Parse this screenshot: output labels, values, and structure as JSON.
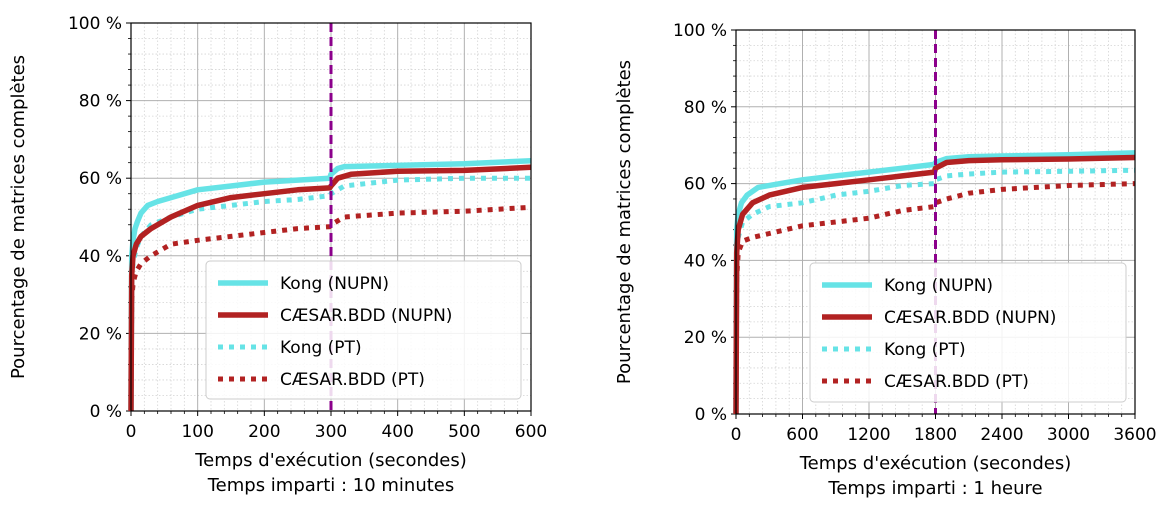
{
  "chart_data": [
    {
      "type": "line",
      "xlabel": "Temps d'exécution (secondes)",
      "subtitle": "Temps imparti : 10 minutes",
      "ylabel": "Pourcentage de matrices complètes",
      "xlim": [
        0,
        600
      ],
      "ylim": [
        0,
        100
      ],
      "x_ticks": [
        "0",
        "100",
        "200",
        "300",
        "400",
        "500",
        "600"
      ],
      "y_ticks": [
        "0 %",
        "20 %",
        "40 %",
        "60 %",
        "80 %",
        "100 %"
      ],
      "grid": true,
      "vline": {
        "x": 300,
        "color": "#8b008b",
        "style": "dashed"
      },
      "legend_position": "lower-right",
      "series": [
        {
          "name": "Kong (NUPN)",
          "color": "#66e3e6",
          "style": "solid",
          "points": [
            [
              0,
              0
            ],
            [
              1,
              40
            ],
            [
              3,
              44
            ],
            [
              6,
              47
            ],
            [
              10,
              49
            ],
            [
              15,
              51
            ],
            [
              25,
              53
            ],
            [
              40,
              54
            ],
            [
              60,
              55
            ],
            [
              100,
              57
            ],
            [
              150,
              58
            ],
            [
              200,
              59
            ],
            [
              250,
              59.5
            ],
            [
              298,
              60
            ],
            [
              300,
              61
            ],
            [
              310,
              62.5
            ],
            [
              320,
              63
            ],
            [
              400,
              63.3
            ],
            [
              500,
              63.7
            ],
            [
              600,
              64.5
            ]
          ]
        },
        {
          "name": "CÆSAR.BDD (NUPN)",
          "color": "#b22222",
          "style": "solid",
          "points": [
            [
              0,
              0
            ],
            [
              1,
              35
            ],
            [
              3,
              40
            ],
            [
              8,
              43
            ],
            [
              15,
              45
            ],
            [
              30,
              47
            ],
            [
              60,
              50
            ],
            [
              100,
              53
            ],
            [
              150,
              55
            ],
            [
              200,
              56
            ],
            [
              250,
              57
            ],
            [
              298,
              57.5
            ],
            [
              300,
              58
            ],
            [
              310,
              60
            ],
            [
              330,
              61
            ],
            [
              400,
              61.8
            ],
            [
              500,
              62
            ],
            [
              600,
              62.8
            ]
          ]
        },
        {
          "name": "Kong (PT)",
          "color": "#66e3e6",
          "style": "dotted",
          "points": [
            [
              0,
              0
            ],
            [
              1,
              33
            ],
            [
              3,
              38
            ],
            [
              8,
              42
            ],
            [
              15,
              45
            ],
            [
              30,
              48
            ],
            [
              60,
              50
            ],
            [
              100,
              52
            ],
            [
              150,
              53
            ],
            [
              200,
              54
            ],
            [
              250,
              54.5
            ],
            [
              298,
              55.5
            ],
            [
              300,
              56
            ],
            [
              320,
              58
            ],
            [
              400,
              59.5
            ],
            [
              500,
              60
            ],
            [
              600,
              60
            ]
          ]
        },
        {
          "name": "CÆSAR.BDD (PT)",
          "color": "#b22222",
          "style": "dotted",
          "points": [
            [
              0,
              0
            ],
            [
              1,
              28
            ],
            [
              3,
              33
            ],
            [
              8,
              36
            ],
            [
              15,
              38
            ],
            [
              30,
              40
            ],
            [
              60,
              43
            ],
            [
              100,
              44
            ],
            [
              150,
              45
            ],
            [
              200,
              46
            ],
            [
              250,
              47
            ],
            [
              298,
              47.5
            ],
            [
              300,
              48
            ],
            [
              320,
              50
            ],
            [
              400,
              51
            ],
            [
              500,
              51.5
            ],
            [
              600,
              52.5
            ]
          ]
        }
      ]
    },
    {
      "type": "line",
      "xlabel": "Temps d'exécution (secondes)",
      "subtitle": "Temps imparti : 1 heure",
      "ylabel": "Pourcentage de matrices complètes",
      "xlim": [
        0,
        3600
      ],
      "ylim": [
        0,
        100
      ],
      "x_ticks": [
        "0",
        "600",
        "1200",
        "1800",
        "2400",
        "3000",
        "3600"
      ],
      "y_ticks": [
        "0 %",
        "20 %",
        "40 %",
        "60 %",
        "80 %",
        "100 %"
      ],
      "grid": true,
      "vline": {
        "x": 1800,
        "color": "#8b008b",
        "style": "dashed"
      },
      "legend_position": "lower-right",
      "series": [
        {
          "name": "Kong (NUPN)",
          "color": "#66e3e6",
          "style": "solid",
          "points": [
            [
              0,
              0
            ],
            [
              6,
              48
            ],
            [
              20,
              52
            ],
            [
              50,
              55
            ],
            [
              100,
              57
            ],
            [
              200,
              59
            ],
            [
              400,
              60
            ],
            [
              600,
              61
            ],
            [
              900,
              62
            ],
            [
              1200,
              63
            ],
            [
              1500,
              64
            ],
            [
              1790,
              65
            ],
            [
              1800,
              65.5
            ],
            [
              1900,
              66.5
            ],
            [
              2100,
              67
            ],
            [
              2400,
              67.2
            ],
            [
              3000,
              67.5
            ],
            [
              3600,
              68
            ]
          ]
        },
        {
          "name": "CÆSAR.BDD (NUPN)",
          "color": "#b22222",
          "style": "solid",
          "points": [
            [
              0,
              0
            ],
            [
              6,
              42
            ],
            [
              20,
              48
            ],
            [
              60,
              52
            ],
            [
              150,
              55
            ],
            [
              300,
              57
            ],
            [
              600,
              59
            ],
            [
              900,
              60
            ],
            [
              1200,
              61
            ],
            [
              1500,
              62
            ],
            [
              1790,
              63
            ],
            [
              1800,
              64
            ],
            [
              1900,
              65.5
            ],
            [
              2100,
              66
            ],
            [
              2400,
              66.2
            ],
            [
              3000,
              66.4
            ],
            [
              3600,
              66.8
            ]
          ]
        },
        {
          "name": "Kong (PT)",
          "color": "#66e3e6",
          "style": "dotted",
          "points": [
            [
              0,
              0
            ],
            [
              6,
              40
            ],
            [
              20,
              46
            ],
            [
              60,
              50
            ],
            [
              150,
              52
            ],
            [
              300,
              54
            ],
            [
              600,
              55
            ],
            [
              900,
              57
            ],
            [
              1200,
              58
            ],
            [
              1500,
              59.5
            ],
            [
              1790,
              60
            ],
            [
              1800,
              61
            ],
            [
              1900,
              62
            ],
            [
              2100,
              62.5
            ],
            [
              2400,
              63
            ],
            [
              3000,
              63.2
            ],
            [
              3600,
              63.5
            ]
          ]
        },
        {
          "name": "CÆSAR.BDD (PT)",
          "color": "#b22222",
          "style": "dotted",
          "points": [
            [
              0,
              0
            ],
            [
              6,
              35
            ],
            [
              20,
              42
            ],
            [
              60,
              45
            ],
            [
              150,
              46
            ],
            [
              300,
              47
            ],
            [
              600,
              49
            ],
            [
              900,
              50
            ],
            [
              1200,
              51
            ],
            [
              1500,
              53
            ],
            [
              1790,
              54
            ],
            [
              1800,
              55
            ],
            [
              1900,
              56
            ],
            [
              2100,
              57.5
            ],
            [
              2400,
              58.5
            ],
            [
              3000,
              59.5
            ],
            [
              3600,
              60
            ]
          ]
        }
      ]
    }
  ]
}
